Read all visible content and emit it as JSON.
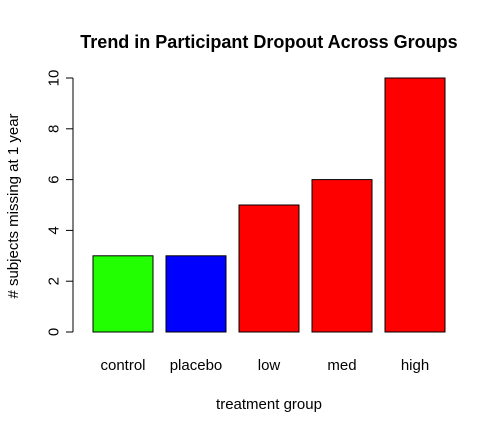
{
  "chart_data": {
    "type": "bar",
    "title": "Trend in Participant Dropout Across Groups",
    "xlabel": "treatment group",
    "ylabel": "# subjects missing at 1 year",
    "categories": [
      "control",
      "placebo",
      "low",
      "med",
      "high"
    ],
    "values": [
      3,
      3,
      5,
      6,
      10
    ],
    "colors": [
      "#22ff00",
      "#0000ff",
      "#ff0000",
      "#ff0000",
      "#ff0000"
    ],
    "ylim": [
      0,
      10
    ],
    "yticks": [
      0,
      2,
      4,
      6,
      8,
      10
    ],
    "grid": false,
    "legend": "none"
  }
}
